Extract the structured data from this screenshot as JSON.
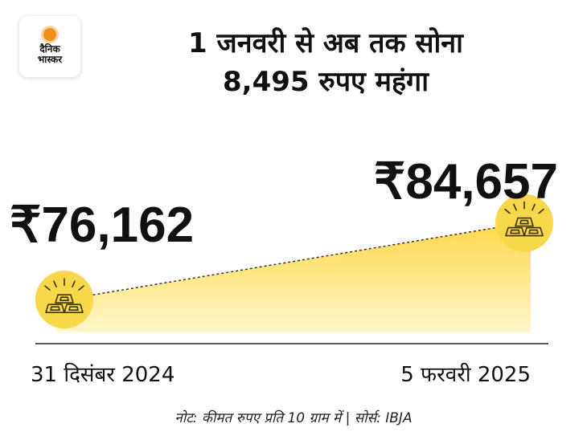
{
  "brand": {
    "logo_line1": "दैनिक",
    "logo_line2": "भास्कर"
  },
  "header": {
    "title_line1": "1 जनवरी से अब तक सोना",
    "title_line2": "8,495 रुपए महंगा"
  },
  "footer": {
    "note": "नोट: कीमत रुपए प्रति 10 ग्राम में | सोर्स: IBJA"
  },
  "colors": {
    "fill_top": "#ffd84a",
    "fill_bottom": "#fff6cc",
    "icon_bg": "#f7d84a",
    "icon_stroke": "#3a3000",
    "baseline": "#222222",
    "logo_accent": "#f28c1b"
  },
  "chart_data": {
    "type": "area",
    "x": [
      "31 दिसंबर 2024",
      "5 फरवरी 2025"
    ],
    "values": [
      76162,
      84657
    ],
    "value_labels": [
      "₹76,162",
      "₹84,657"
    ],
    "markers": [
      "gold-bars-icon",
      "gold-bars-icon"
    ],
    "grid": false,
    "legend": "none"
  }
}
